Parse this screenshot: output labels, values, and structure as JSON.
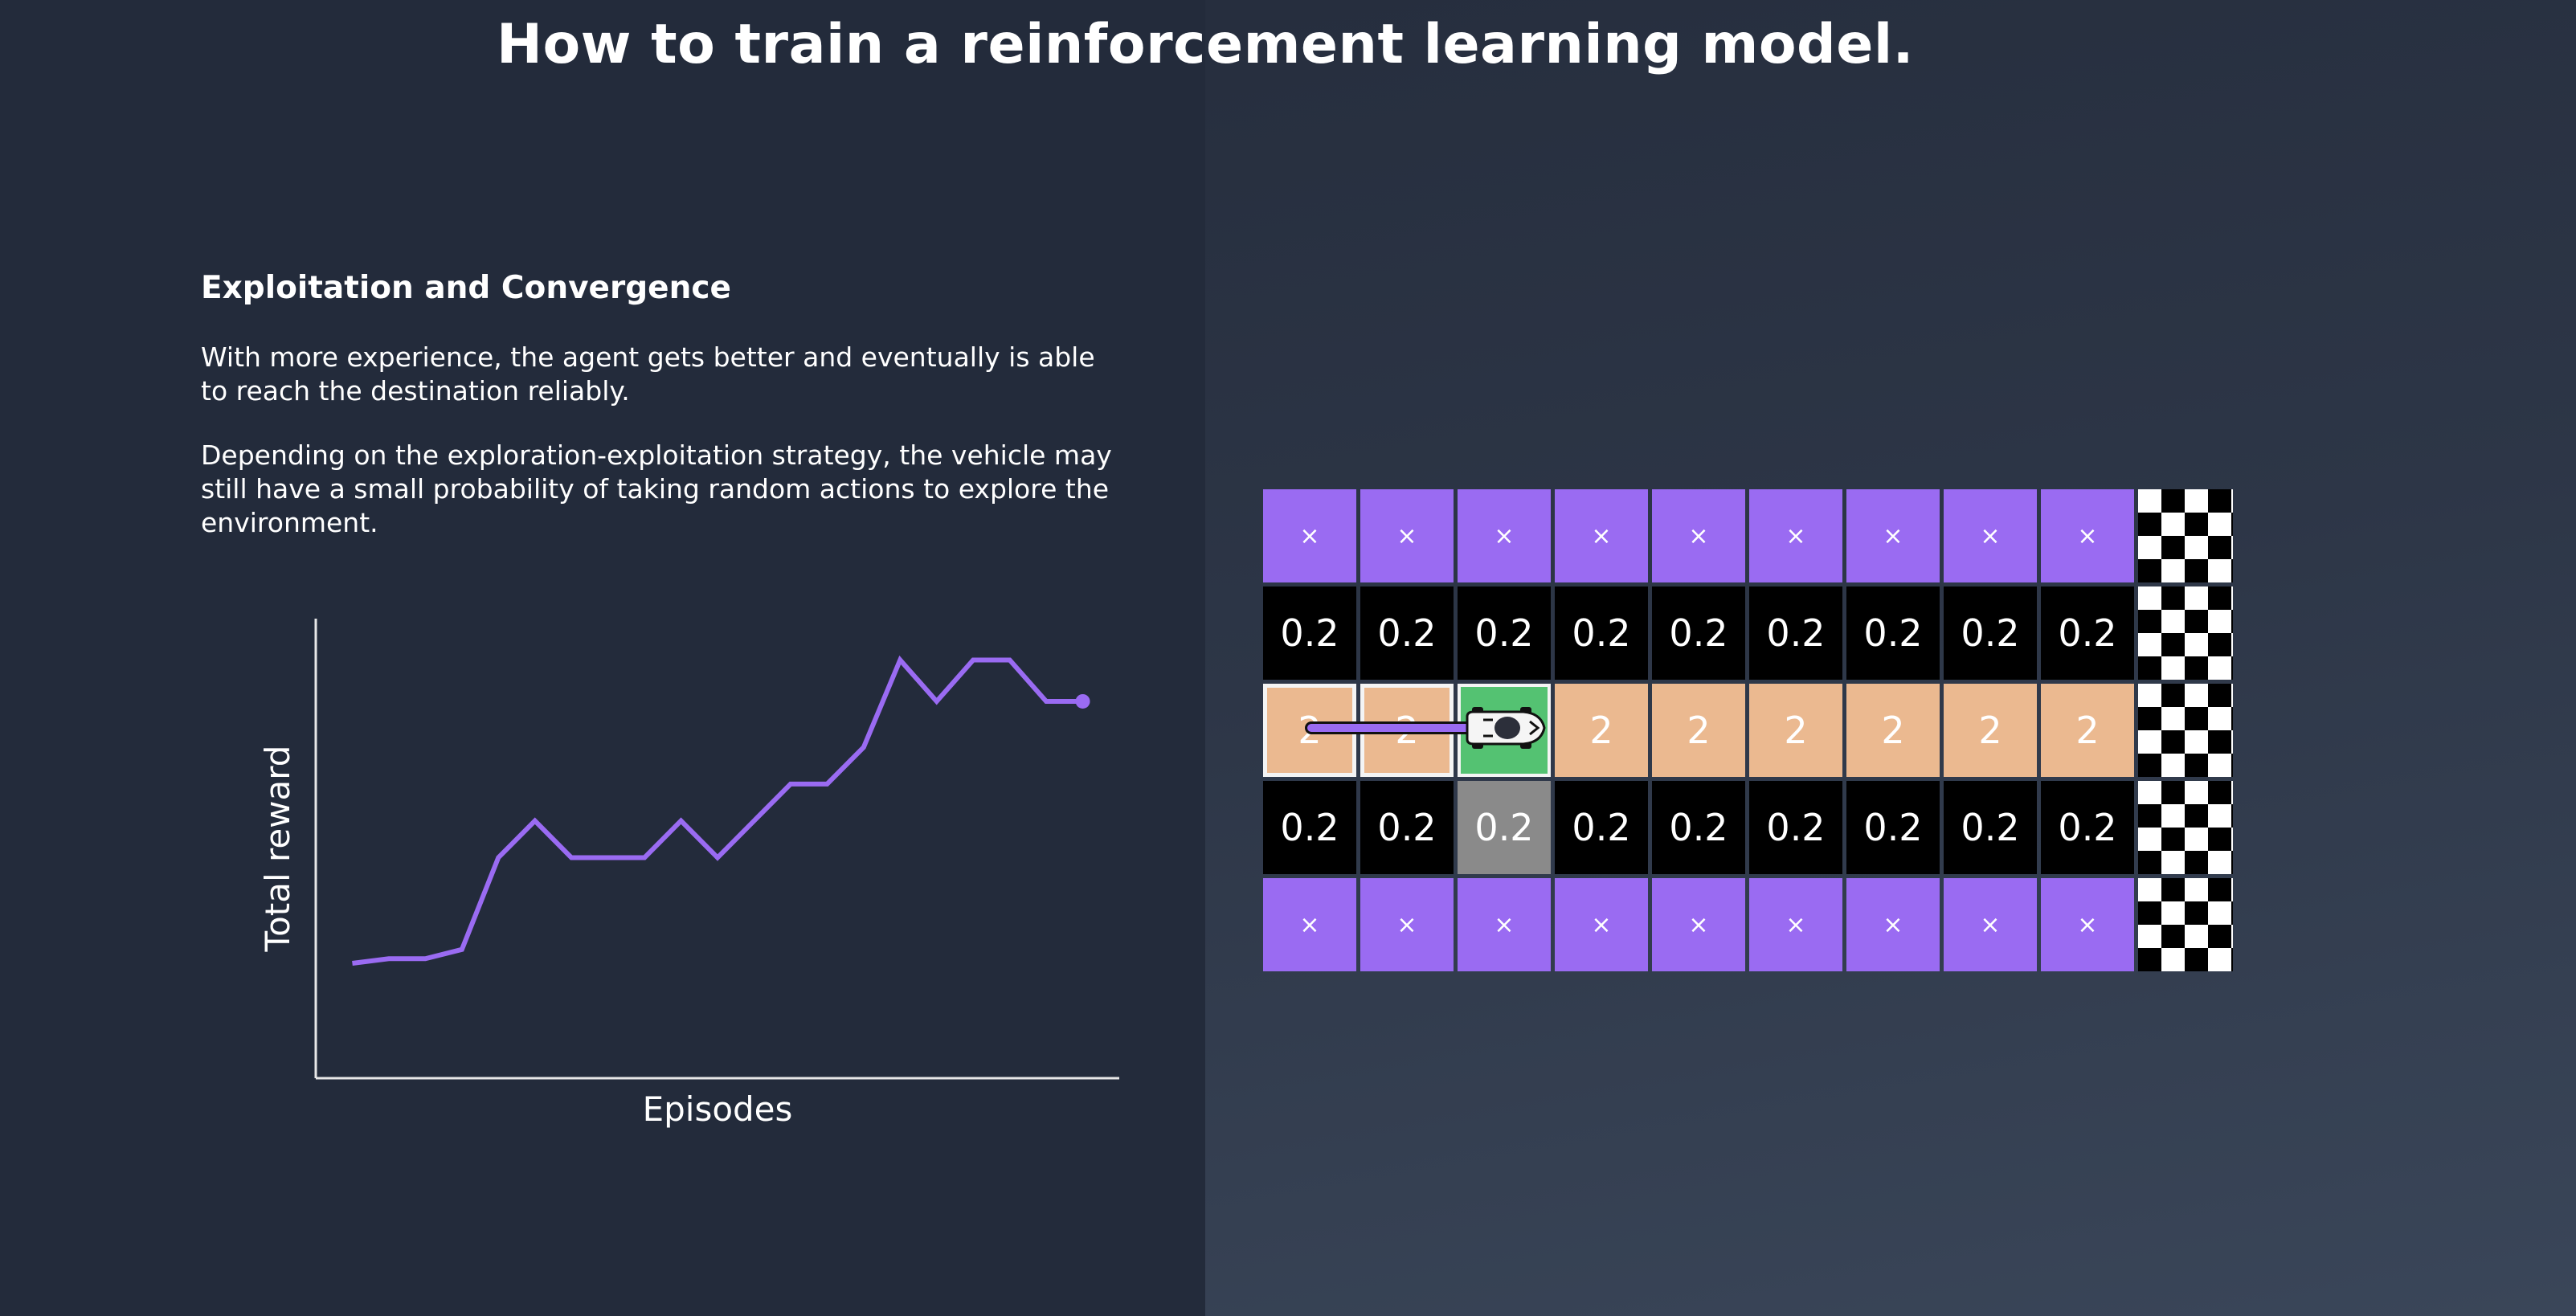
{
  "title": "How to train a reinforcement learning model.",
  "section": {
    "heading": "Exploitation and Convergence",
    "paragraphs": [
      "With more experience, the agent gets better and eventually is able to reach the destination reliably.",
      "Depending on the exploration-exploitation strategy, the vehicle may still have a small probability of taking random actions to explore the environment."
    ]
  },
  "chart_data": {
    "type": "line",
    "title": "",
    "xlabel": "Episodes",
    "ylabel": "Total reward",
    "ticks_shown": false,
    "grid": false,
    "series": [
      {
        "color": "#9a6bf2",
        "x": [
          1,
          2,
          3,
          4,
          5,
          6,
          7,
          8,
          9,
          10,
          11,
          12,
          13,
          14,
          15,
          16,
          17,
          18,
          19,
          20,
          21
        ],
        "y": [
          25,
          26,
          26,
          28,
          48,
          56,
          48,
          48,
          48,
          56,
          48,
          56,
          64,
          64,
          72,
          91,
          82,
          91,
          91,
          82,
          82
        ]
      }
    ],
    "xlim": [
      0,
      22
    ],
    "ylim": [
      0,
      100
    ],
    "end_marker": true
  },
  "grid": {
    "colors": {
      "wall": "#9a6bf2",
      "track": "#000000",
      "path": "#ebb990",
      "current": "#54c272",
      "visited": "#8a8a8a",
      "trail": "#9a6bf2"
    },
    "wall_symbol": "×",
    "rows": [
      [
        "×",
        "×",
        "×",
        "×",
        "×",
        "×",
        "×",
        "×",
        "×"
      ],
      [
        "0.2",
        "0.2",
        "0.2",
        "0.2",
        "0.2",
        "0.2",
        "0.2",
        "0.2",
        "0.2"
      ],
      [
        "2",
        "2",
        "",
        "2",
        "2",
        "2",
        "2",
        "2",
        "2"
      ],
      [
        "0.2",
        "0.2",
        "0.2",
        "0.2",
        "0.2",
        "0.2",
        "0.2",
        "0.2",
        "0.2"
      ],
      [
        "×",
        "×",
        "×",
        "×",
        "×",
        "×",
        "×",
        "×",
        "×"
      ]
    ],
    "row_types": [
      "wall",
      "track",
      "path",
      "track",
      "wall"
    ],
    "agent_position": {
      "row": 3,
      "column": 3
    },
    "walked_cells": [
      1,
      2
    ],
    "visited_cell": {
      "row": 4,
      "column": 3
    },
    "finish": "checkered-flag",
    "icons": [
      "car-icon"
    ]
  }
}
